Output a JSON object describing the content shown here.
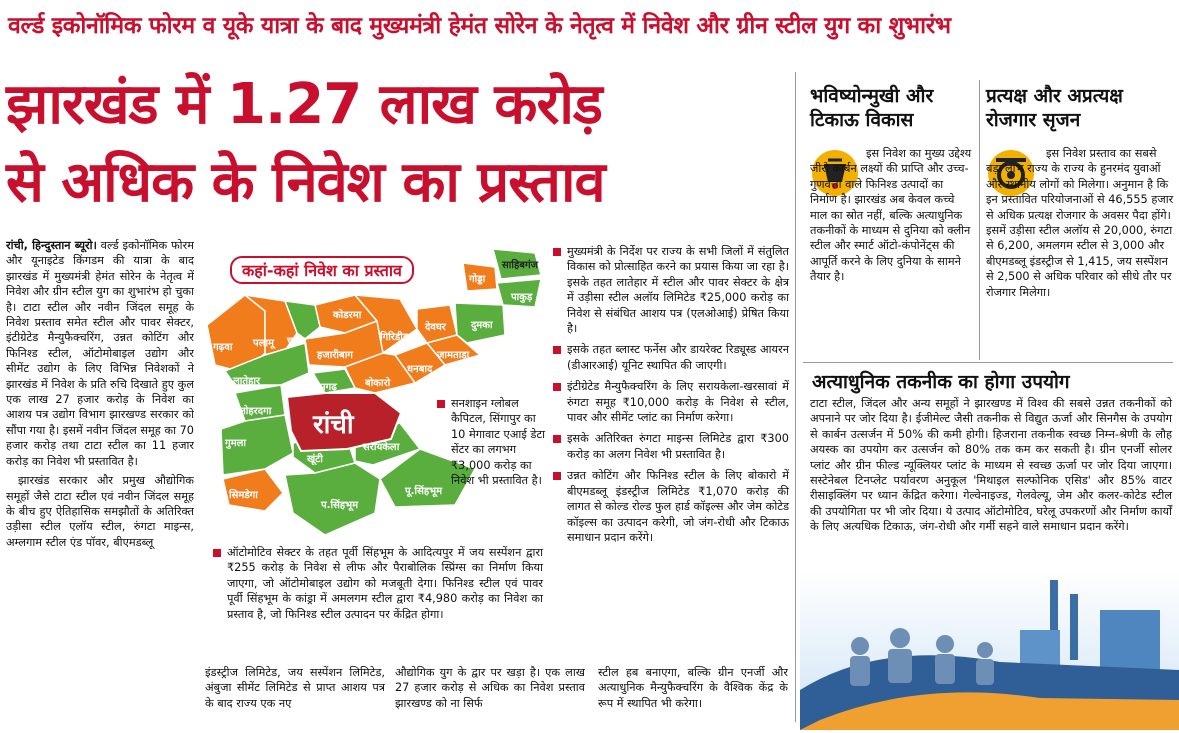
{
  "kicker": "वर्ल्ड इकोनॉमिक फोरम व यूके यात्रा के बाद मुख्यमंत्री हेमंत सोरेन के नेतृत्व में निवेश और ग्रीन स्टील युग का शुभारंभ",
  "headline": {
    "line1": "झारखंड में 1.27 लाख करोड़",
    "line2": "से अधिक के निवेश का प्रस्ताव"
  },
  "col1": {
    "dateline": "रांची, हिन्दुस्तान ब्यूरो।",
    "p1": " वर्ल्ड इकोनॉमिक फोरम और यूनाइटेड किंगडम की यात्रा के बाद झारखंड में मुख्यमंत्री हेमंत सोरेन के नेतृत्व में निवेश और ग्रीन स्टील युग का शुभारंभ हो चुका है। टाटा स्टील और नवीन जिंदल समूह के निवेश प्रस्ताव समेत स्टील और पावर सेक्टर, इंटीग्रेटेड मैन्युफैक्चरिंग, उन्नत कोटिंग और फिनिश्ड स्टील, ऑटोमोबाइल उद्योग और सीमेंट उद्योग के लिए विभिन्न निवेशकों ने झारखंड में निवेश के प्रति रुचि दिखाते हुए कुल एक लाख 27 हजार करोड़ के निवेश का आशय पत्र उद्योग विभाग झारखण्ड सरकार को सौंपा गया है। इसमें नवीन जिंदल समूह का 70 हजार करोड़ तथा टाटा स्टील का 11 हजार करोड़ का निवेश भी प्रस्तावित है।",
    "p2": "झारखंड सरकार और प्रमुख औद्योगिक समूहों जैसे टाटा स्टील एवं नवीन जिंदल समूह के बीच हुए ऐतिहासिक समझौतों के अतिरिक्त उड़ीसा स्टील एलॉय स्टील, रुंगटा माइन्स, अम्लगाम स्टील एंड पॉवर, बीएमडब्लू"
  },
  "map": {
    "title": "कहां-कहां निवेश का प्रस्ताव",
    "districts": {
      "sahibganj": "साहिबगंज",
      "godda": "गोड्डा",
      "pakur": "पाकुड़",
      "dumka": "दुमका",
      "deoghar": "देवघर",
      "jamtara": "जामताड़ा",
      "giridih": "गिरिडीह",
      "koderma": "कोडरमा",
      "hazaribagh": "हजारीबाग",
      "chatra": "चतरा",
      "palamu": "पलामू",
      "garhwa": "गढ़वा",
      "latehar": "लातेहार",
      "lohardaga": "लोहरदगा",
      "gumla": "गुमला",
      "simdega": "सिमडेगा",
      "ramgarh": "रामगढ़",
      "bokaro": "बोकारो",
      "dhanbad": "धनबाद",
      "ranchi": "रांची",
      "khunti": "खूंटी",
      "saraikela": "सरायकेला",
      "west_singhbhum": "प.सिंहभूम",
      "east_singhbhum": "पू.सिंहभूम"
    },
    "colors": {
      "orange": "#f07c1c",
      "green": "#5aae3e",
      "red": "#b8202a"
    }
  },
  "map_note": "सनशाइन ग्लोबल कैपिटल, सिंगापुर का 10 मेगावाट एआई डेटा सेंटर का लगभग ₹3,000 करोड़ का निवेश भी प्रस्तावित है।",
  "auto_bullet": "ऑटोमोटिव सेक्टर के तहत पूर्वी सिंहभूम के आदित्यपुर में जय सस्पेंशन द्वारा ₹255 करोड़ के निवेश से लीफ और पैराबोलिक स्प्रिंग्स का निर्माण किया जाएगा, जो ऑटोमोबाइल उद्योग को मजबूती देगा। फिनिश्ड स्टील एवं पावर पूर्वी सिंहभूम के कांड्रा में अमलगम स्टील द्वारा ₹4,980 करोड़ का निवेश का प्रस्ताव है, जो फिनिश्ड स्टील उत्पादन पर केंद्रित होगा।",
  "col3_bullets": [
    "मुख्यमंत्री के निर्देश पर राज्य के सभी जिलों में संतुलित विकास को प्रोत्साहित करने का प्रयास किया जा रहा है। इसके तहत लातेहार में स्टील और पावर सेक्टर के क्षेत्र में उड़ीसा स्टील अलॉय लिमिटेड ₹25,000 करोड़ का निवेश से संबंधित आशय पत्र (एलओआई) प्रेषित किया है।",
    "इसके तहत ब्लास्ट फर्नेस और डायरेक्ट रिड्यूस्ड आयरन (डीआरआई) यूनिट स्थापित की जाएगी।",
    "इंटीग्रेटेड मैन्युफैक्चरिंग के लिए सरायकेला-खरसावां में रुंगटा समूह ₹10,000 करोड़ के निवेश से स्टील, पावर और सीमेंट प्लांट का निर्माण करेगा।",
    "इसके अतिरिक्त रुंगटा माइन्स लिमिटेड द्वारा ₹300 करोड़ का अलग निवेश भी प्रस्तावित है।",
    "उन्नत कोटिंग और फिनिश्ड स्टील के लिए बोकारो में बीएमडब्लू इंडस्ट्रीज लिमिटेड ₹1,070 करोड़ की लागत से कोल्ड रोल्ड फुल हार्ड कॉइल्स और जेम कोटेड कॉइल्स का उत्पादन करेगी, जो जंग-रोधी और टिकाऊ समाधान प्रदान करेंगे।"
  ],
  "bottom": {
    "c2": "इंडस्ट्रीज लिमिटेड, जय सस्पेंशन लिमिटेड, अंबुजा सीमेंट लिमिटेड से प्राप्त आशय पत्र के बाद राज्य एक नए",
    "c3": "औद्योगिक युग के द्वार पर खड़ा है। एक लाख 27 हजार करोड़ से अधिक का निवेश प्रस्ताव झारखण्ड को ना सिर्फ",
    "c4": "स्टील हब बनाएगा, बल्कि ग्रीन एनर्जी और अत्याधुनिक मैन्युफैक्चरिंग के वैश्विक केंद्र के रूप में स्थापित भी करेगा।"
  },
  "side1": {
    "title": "भविष्योन्मुखी और टिकाऊ विकास",
    "text": "इस निवेश का मुख्य उद्देश्य जीरो कार्बन लक्ष्यों की प्राप्ति और उच्च-गुणवत्ता वाले फिनिश्ड उत्पादों का निर्माण है। झारखंड अब केवल कच्चे माल का स्रोत नहीं, बल्कि अत्याधुनिक तकनीकों के माध्यम से दुनिया को क्लीन स्टील और स्मार्ट ऑटो-कंपोनेंट्स की आपूर्ति करने के लिए दुनिया के सामने तैयार है।"
  },
  "side2": {
    "title": "प्रत्यक्ष और अप्रत्यक्ष रोजगार सृजन",
    "text": "इस निवेश प्रस्ताव का सबसे बड़ा लाभ राज्य के राज्य के हुनरमंद युवाओं और स्थानीय लोगों को मिलेगा। अनुमान है कि इन प्रस्तावित परियोजनाओं से 46,555 हजार से अधिक प्रत्यक्ष रोजगार के अवसर पैदा होंगे। इसमें उड़ीसा स्टील अलॉय से 20,000, रुंगटा से 6,200, अमलगम स्टील से 3,000 और बीएमडब्लू इंडस्ट्रीज से 1,415, जय सस्पेंशन से 2,500 से अधिक परिवार को सीधे तौर पर रोजगार मिलेगा।"
  },
  "tech": {
    "title": "अत्याधुनिक तकनीक का होगा उपयोग",
    "text": "टाटा स्टील, जिंदल और अन्य समूहों ने झारखण्ड में विश्व की सबसे उन्नत तकनीकों को अपनाने पर जोर दिया है। ईजीमेल्ट जैसी तकनीक से विद्युत ऊर्जा और सिनगैस के उपयोग से कार्बन उत्सर्जन में 50% की कमी होगी। हिजराना तकनीक स्वच्छ निम्न-श्रेणी के लौह अयस्क का उपयोग कर उत्सर्जन को 80% तक कम कर सकती है। ग्रीन एनर्जी सोलर प्लांट और ग्रीन फील्ड न्यूक्लियर प्लांट के माध्यम से स्वच्छ ऊर्जा पर जोर दिया जाएगा। सस्टेनेबल टिनप्लेट पर्यावरण अनुकूल 'मिथाइल सल्फोनिक एसिड' और 85% वाटर रीसाइक्लिंग पर ध्यान केंद्रित करेगा। गेल्वेनाइज्ड, गेलवेल्यू, जेम और कलर-कोटेड स्टील की उपयोगिता पर भी जोर दिया। ये उत्पाद ऑटोमोटिव, घरेलू उपकरणों और निर्माण कार्यों के लिए अत्यधिक टिकाऊ, जंग-रोधी और गर्मी सहने वाले समाधान प्रदान करेंगे।"
  }
}
